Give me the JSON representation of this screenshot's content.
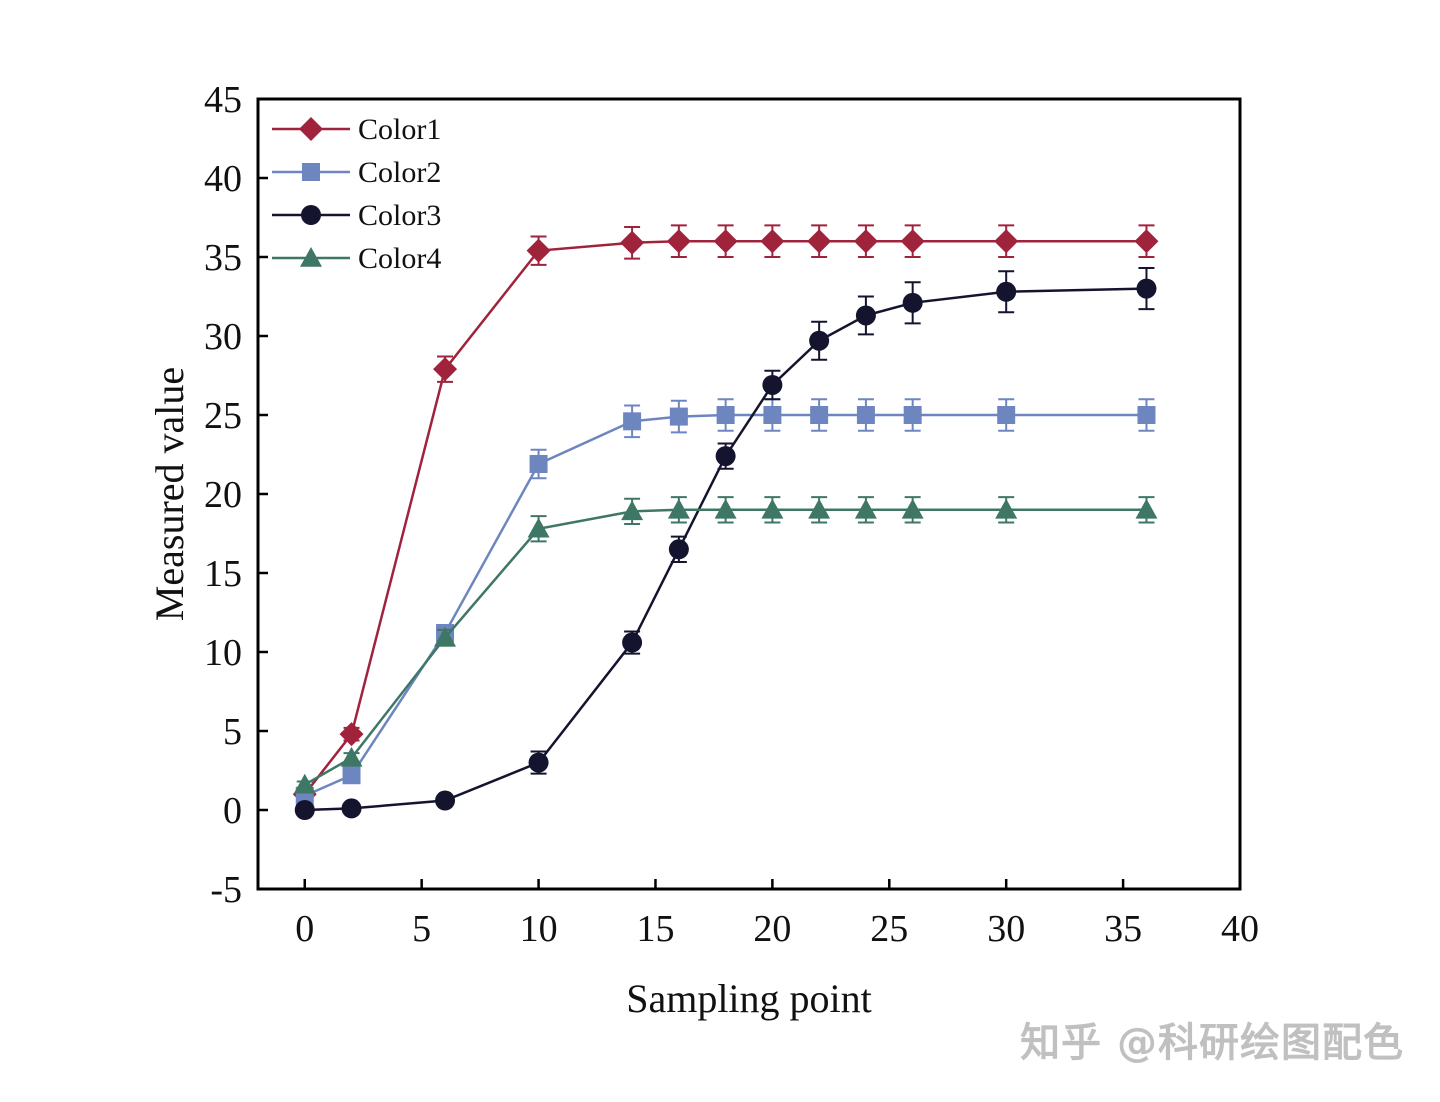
{
  "chart_data": {
    "type": "line",
    "xlabel": "Sampling point",
    "ylabel": "Measured value",
    "xlim": [
      -2,
      40
    ],
    "ylim": [
      -5,
      45
    ],
    "xticks": [
      0,
      5,
      10,
      15,
      20,
      25,
      30,
      35,
      40
    ],
    "yticks": [
      -5,
      0,
      5,
      10,
      15,
      20,
      25,
      30,
      35,
      40,
      45
    ],
    "grid": false,
    "legend_position": "top-left",
    "x": [
      0,
      2,
      6,
      10,
      14,
      16,
      18,
      20,
      22,
      24,
      26,
      30,
      36
    ],
    "series": [
      {
        "name": "Color1",
        "color": "#A0233C",
        "marker": "diamond",
        "values": [
          1.0,
          4.8,
          27.9,
          35.4,
          35.9,
          36.0,
          36.0,
          36.0,
          36.0,
          36.0,
          36.0,
          36.0,
          36.0
        ],
        "errors": [
          0.3,
          0.4,
          0.8,
          0.9,
          1.0,
          1.0,
          1.0,
          1.0,
          1.0,
          1.0,
          1.0,
          1.0,
          1.0
        ]
      },
      {
        "name": "Color2",
        "color": "#6E86BF",
        "marker": "square",
        "values": [
          0.9,
          2.2,
          11.2,
          21.9,
          24.6,
          24.9,
          25.0,
          25.0,
          25.0,
          25.0,
          25.0,
          25.0,
          25.0
        ],
        "errors": [
          0.2,
          0.3,
          0.5,
          0.9,
          1.0,
          1.0,
          1.0,
          1.0,
          1.0,
          1.0,
          1.0,
          1.0,
          1.0
        ]
      },
      {
        "name": "Color3",
        "color": "#14142E",
        "marker": "circle",
        "values": [
          0.0,
          0.1,
          0.6,
          3.0,
          10.6,
          16.5,
          22.4,
          26.9,
          29.7,
          31.3,
          32.1,
          32.8,
          33.0
        ],
        "errors": [
          0.1,
          0.1,
          0.2,
          0.7,
          0.7,
          0.8,
          0.8,
          0.9,
          1.2,
          1.2,
          1.3,
          1.3,
          1.3
        ]
      },
      {
        "name": "Color4",
        "color": "#3F7766",
        "marker": "triangle",
        "values": [
          1.6,
          3.3,
          10.9,
          17.8,
          18.9,
          19.0,
          19.0,
          19.0,
          19.0,
          19.0,
          19.0,
          19.0,
          19.0
        ],
        "errors": [
          0.2,
          0.3,
          0.5,
          0.8,
          0.8,
          0.8,
          0.8,
          0.8,
          0.8,
          0.8,
          0.8,
          0.8,
          0.8
        ]
      }
    ]
  },
  "watermark": "知乎 @科研绘图配色"
}
